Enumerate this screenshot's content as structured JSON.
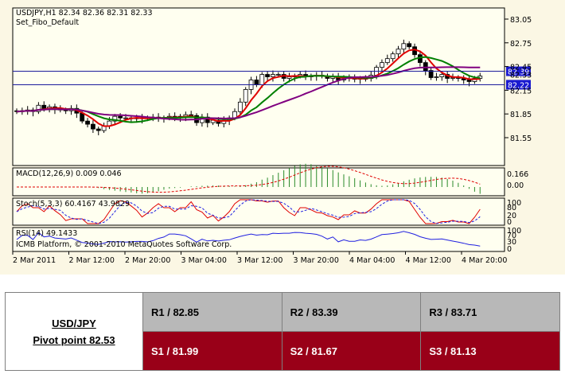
{
  "chart_data": {
    "type": "candlestick",
    "symbol_header": "USDJPY,H1  82.34 82.36 82.31 82.33",
    "indicator_label": "Set_Fibo_Default",
    "price_ticks": [
      "83.05",
      "82.75",
      "82.45",
      "82.15",
      "81.85",
      "81.55"
    ],
    "horizontal_levels": [
      {
        "label": "82.39",
        "value": 82.39
      },
      {
        "label": "82.22",
        "value": 82.22
      }
    ],
    "current_price_label": "82.33",
    "x_tick_labels": [
      "2 Mar 2011",
      "2 Mar 12:00",
      "2 Mar 20:00",
      "3 Mar 04:00",
      "3 Mar 12:00",
      "3 Mar 20:00",
      "4 Mar 04:00",
      "4 Mar 12:00",
      "4 Mar 20:00"
    ],
    "candles_close": [
      81.88,
      81.89,
      81.9,
      81.88,
      81.96,
      81.92,
      81.94,
      81.91,
      81.9,
      81.89,
      81.92,
      81.86,
      81.76,
      81.72,
      81.66,
      81.64,
      81.7,
      81.76,
      81.82,
      81.8,
      81.8,
      81.79,
      81.8,
      81.79,
      81.8,
      81.81,
      81.8,
      81.8,
      81.82,
      81.8,
      81.82,
      81.84,
      81.83,
      81.74,
      81.81,
      81.74,
      81.77,
      81.73,
      81.77,
      81.8,
      81.88,
      82.0,
      82.16,
      82.28,
      82.22,
      82.35,
      82.32,
      82.35,
      82.35,
      82.3,
      82.32,
      82.33,
      82.35,
      82.32,
      82.33,
      82.34,
      82.33,
      82.3,
      82.32,
      82.28,
      82.31,
      82.3,
      82.3,
      82.29,
      82.3,
      82.34,
      82.44,
      82.5,
      82.55,
      82.61,
      82.67,
      82.74,
      82.7,
      82.6,
      82.5,
      82.4,
      82.31,
      82.32,
      82.35,
      82.3,
      82.31,
      82.3,
      82.28,
      82.26,
      82.3,
      82.33
    ],
    "macd": {
      "label": "MACD(12,26,9) 0.009 0.046",
      "ticks": [
        "0.166",
        "0.00"
      ]
    },
    "stoch": {
      "label": "Stoch(5,3,3) 60.4167 43.9829",
      "ticks": [
        "100",
        "80",
        "20",
        "0"
      ]
    },
    "rsi": {
      "label": "RSI(14) 49.1433",
      "ticks": [
        "100",
        "70",
        "30",
        "0"
      ]
    },
    "copyright": "ICMB Platform, © 2001-2010 MetaQuotes Software Corp."
  },
  "pivot_table": {
    "symbol": "USD/JPY",
    "pivot": "Pivot point 82.53",
    "resistance": [
      "R1 / 82.85",
      "R2 / 83.39",
      "R3 / 83.71"
    ],
    "support": [
      "S1 / 81.99",
      "S2 / 81.67",
      "S3 / 81.13"
    ]
  }
}
